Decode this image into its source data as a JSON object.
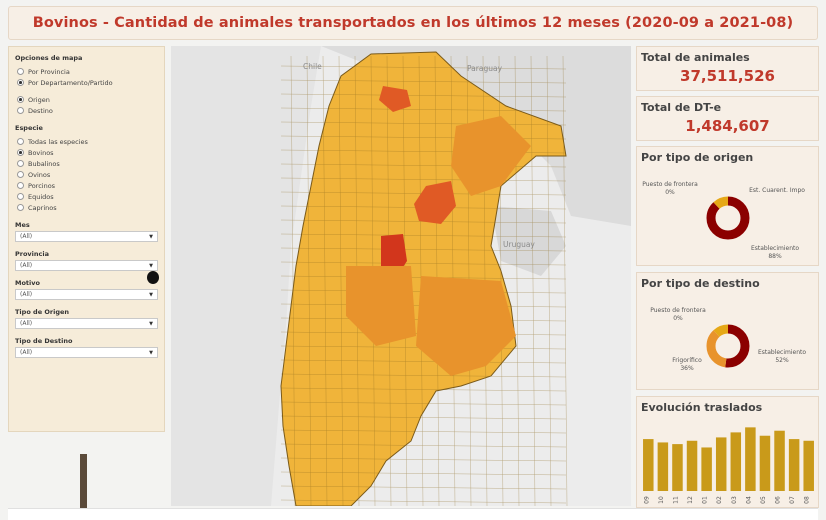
{
  "title": "Bovinos - Cantidad de animales transportados en los últimos 12 meses (2020-09 a 2021-08)",
  "filters": {
    "map_options_title": "Opciones de mapa",
    "map_options": [
      {
        "label": "Por Provincia",
        "selected": false
      },
      {
        "label": "Por Departamento/Partido",
        "selected": true
      }
    ],
    "direction_options": [
      {
        "label": "Origen",
        "selected": true
      },
      {
        "label": "Destino",
        "selected": false
      }
    ],
    "species_title": "Especie",
    "species": [
      {
        "label": "Todas las especies",
        "selected": false
      },
      {
        "label": "Bovinos",
        "selected": true
      },
      {
        "label": "Bubalinos",
        "selected": false
      },
      {
        "label": "Ovinos",
        "selected": false
      },
      {
        "label": "Porcinos",
        "selected": false
      },
      {
        "label": "Equidos",
        "selected": false
      },
      {
        "label": "Caprinos",
        "selected": false
      }
    ],
    "dropdowns": [
      {
        "label": "Mes",
        "value": "(All)"
      },
      {
        "label": "Provincia",
        "value": "(All)"
      },
      {
        "label": "Motivo",
        "value": "(All)"
      },
      {
        "label": "Tipo de Origen",
        "value": "(All)"
      },
      {
        "label": "Tipo de Destino",
        "value": "(All)"
      }
    ]
  },
  "map": {
    "labels": {
      "chile": "Chile",
      "paraguay": "Paraguay",
      "uruguay": "Uruguay"
    },
    "colors": {
      "light": "#f0b43a",
      "mid": "#e8932c",
      "dark": "#e05a25",
      "darkest": "#d2361c",
      "sea": "#ececec",
      "land": "#dadada"
    }
  },
  "kpis": {
    "total_animales": {
      "title": "Total de animales",
      "value": "37,511,526"
    },
    "total_dte": {
      "title": "Total de DT-e",
      "value": "1,484,607"
    }
  },
  "origin_donut": {
    "title": "Por tipo de origen",
    "labels": {
      "frontera": "Puesto de frontera",
      "frontera_pct": "0%",
      "cuarent": "Est. Cuarent. Impo",
      "establecimiento": "Establecimiento",
      "establecimiento_pct": "88%"
    },
    "segments": [
      0.88,
      0.12
    ],
    "colors": [
      "#8b0000",
      "#e6a817"
    ]
  },
  "dest_donut": {
    "title": "Por tipo de destino",
    "labels": {
      "frontera": "Puesto de frontera",
      "frontera_pct": "0%",
      "frigorifico": "Frigorífico",
      "frigorifico_pct": "36%",
      "establecimiento": "Establecimiento",
      "establecimiento_pct": "52%"
    },
    "segments": [
      0.52,
      0.36,
      0.12
    ],
    "colors": [
      "#8b0000",
      "#e8932c",
      "#e6a817"
    ]
  },
  "chart_data": {
    "type": "bar",
    "title": "Evolución traslados",
    "categories": [
      "09",
      "10",
      "11",
      "12",
      "01",
      "02",
      "03",
      "04",
      "05",
      "06",
      "07",
      "08"
    ],
    "values": [
      62,
      58,
      56,
      60,
      52,
      64,
      70,
      76,
      66,
      72,
      62,
      60
    ],
    "color": "#c99a1a"
  }
}
